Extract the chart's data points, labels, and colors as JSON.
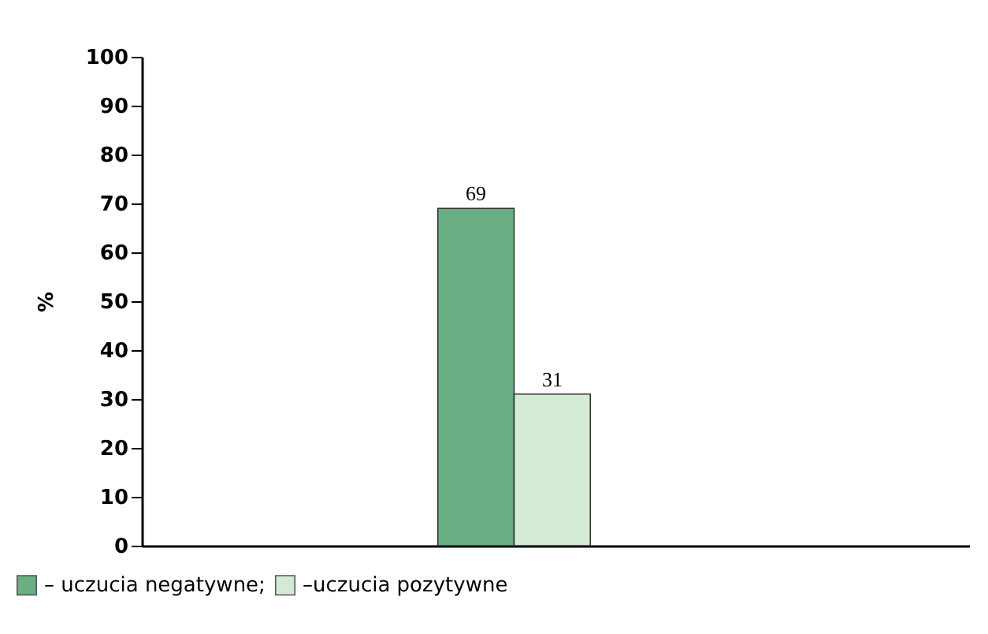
{
  "chart_data": {
    "type": "bar",
    "categories": [
      null
    ],
    "series": [
      {
        "name": "– uczucia negatywne;",
        "color": "#6aae84",
        "values": [
          69
        ]
      },
      {
        "name": "–uczucia  pozytywne",
        "color": "#d4ead5",
        "values": [
          31
        ]
      }
    ],
    "ylabel": "%",
    "ylim": [
      0,
      100
    ],
    "yticks": [
      0,
      10,
      20,
      30,
      40,
      50,
      60,
      70,
      80,
      90,
      100
    ],
    "data_labels": true,
    "grid": false,
    "legend": "bottom left",
    "tick_labels": "y"
  }
}
